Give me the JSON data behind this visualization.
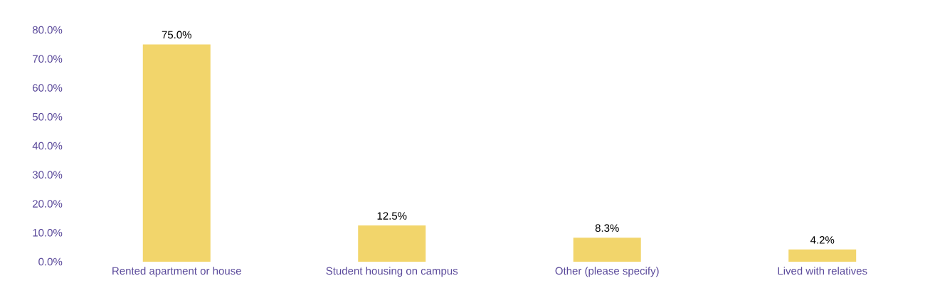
{
  "chart_data": {
    "type": "bar",
    "categories": [
      "Rented apartment or house",
      "Student housing on campus",
      "Other (please specify)",
      "Lived with relatives"
    ],
    "values": [
      75.0,
      12.5,
      8.3,
      4.2
    ],
    "value_labels": [
      "75.0%",
      "12.5%",
      "8.3%",
      "4.2%"
    ],
    "color": "#f2d56b",
    "ylim": [
      0,
      80
    ],
    "yticks": [
      {
        "value": 0,
        "label": "0.0%"
      },
      {
        "value": 10,
        "label": "10.0%"
      },
      {
        "value": 20,
        "label": "20.0%"
      },
      {
        "value": 30,
        "label": "30.0%"
      },
      {
        "value": 40,
        "label": "40.0%"
      },
      {
        "value": 50,
        "label": "50.0%"
      },
      {
        "value": 60,
        "label": "60.0%"
      },
      {
        "value": 70,
        "label": "70.0%"
      },
      {
        "value": 80,
        "label": "80.0%"
      }
    ]
  }
}
